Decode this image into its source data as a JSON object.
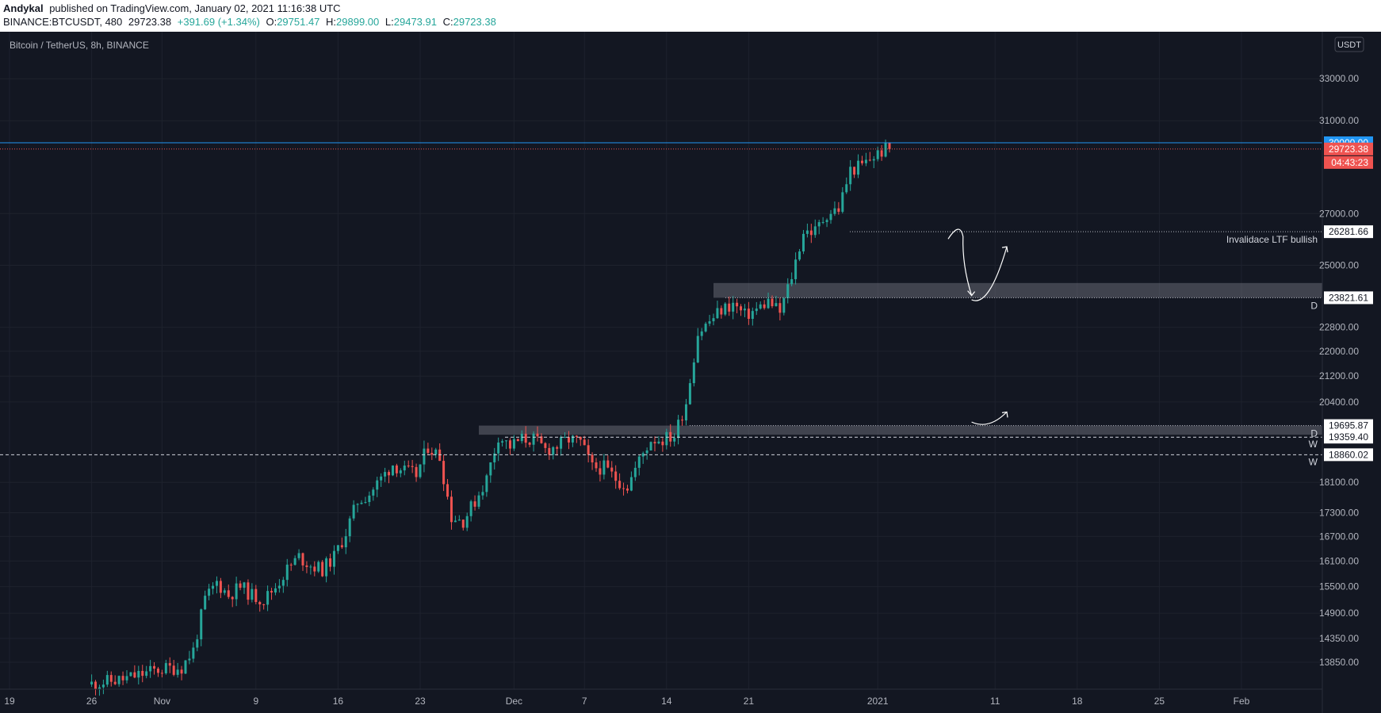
{
  "header": {
    "author": "Andykal",
    "published_text": "published on TradingView.com, January 02, 2021 11:16:38 UTC",
    "symbol": "BINANCE:BTCUSDT, 480",
    "last_price": "29723.38",
    "change": "+391.69 (+1.34%)",
    "o_label": "O:",
    "o_value": "29751.47",
    "h_label": "H:",
    "h_value": "29899.00",
    "l_label": "L:",
    "l_value": "29473.91",
    "c_label": "C:",
    "c_value": "29723.38"
  },
  "chart_data": {
    "type": "candlestick",
    "title": "Bitcoin / TetherUS, 8h, BINANCE",
    "currency": "USDT",
    "y_scale": "log",
    "ylim": [
      13650,
      35500
    ],
    "y_ticks": [
      "33000.00",
      "31000.00",
      "27000.00",
      "25000.00",
      "22800.00",
      "22000.00",
      "21200.00",
      "20400.00",
      "18100.00",
      "17300.00",
      "16700.00",
      "16100.00",
      "15500.00",
      "14900.00",
      "14350.00",
      "13850.00"
    ],
    "x_ticks": [
      {
        "label": "19",
        "date": "2020-10-19"
      },
      {
        "label": "26",
        "date": "2020-10-26"
      },
      {
        "label": "Nov",
        "date": "2020-11-01"
      },
      {
        "label": "9",
        "date": "2020-11-09"
      },
      {
        "label": "16",
        "date": "2020-11-16"
      },
      {
        "label": "23",
        "date": "2020-11-23"
      },
      {
        "label": "Dec",
        "date": "2020-12-01"
      },
      {
        "label": "7",
        "date": "2020-12-07"
      },
      {
        "label": "14",
        "date": "2020-12-14"
      },
      {
        "label": "21",
        "date": "2020-12-21"
      },
      {
        "label": "2021",
        "date": "2021-01-01"
      },
      {
        "label": "11",
        "date": "2021-01-11"
      },
      {
        "label": "18",
        "date": "2021-01-18"
      },
      {
        "label": "25",
        "date": "2021-01-25"
      },
      {
        "label": "Feb",
        "date": "2021-02-01"
      }
    ],
    "price_path": [
      [
        "2020-10-26",
        13400
      ],
      [
        "2020-10-29",
        13500
      ],
      [
        "2020-11-01",
        13700
      ],
      [
        "2020-11-03",
        13750
      ],
      [
        "2020-11-04",
        14100
      ],
      [
        "2020-11-05",
        15200
      ],
      [
        "2020-11-06",
        15600
      ],
      [
        "2020-11-07",
        15300
      ],
      [
        "2020-11-08",
        15500
      ],
      [
        "2020-11-09",
        15300
      ],
      [
        "2020-11-10",
        15200
      ],
      [
        "2020-11-11",
        15500
      ],
      [
        "2020-11-12",
        15900
      ],
      [
        "2020-11-13",
        16200
      ],
      [
        "2020-11-14",
        16000
      ],
      [
        "2020-11-15",
        15900
      ],
      [
        "2020-11-16",
        16200
      ],
      [
        "2020-11-17",
        16800
      ],
      [
        "2020-11-18",
        17600
      ],
      [
        "2020-11-19",
        17800
      ],
      [
        "2020-11-20",
        18200
      ],
      [
        "2020-11-21",
        18600
      ],
      [
        "2020-11-22",
        18400
      ],
      [
        "2020-11-23",
        18300
      ],
      [
        "2020-11-24",
        19100
      ],
      [
        "2020-11-25",
        18800
      ],
      [
        "2020-11-26",
        17200
      ],
      [
        "2020-11-27",
        17100
      ],
      [
        "2020-11-28",
        17600
      ],
      [
        "2020-11-29",
        18200
      ],
      [
        "2020-11-30",
        19400
      ],
      [
        "2020-12-01",
        19100
      ],
      [
        "2020-12-02",
        19300
      ],
      [
        "2020-12-03",
        19300
      ],
      [
        "2020-12-04",
        19000
      ],
      [
        "2020-12-05",
        19100
      ],
      [
        "2020-12-06",
        19300
      ],
      [
        "2020-12-07",
        19200
      ],
      [
        "2020-12-08",
        18500
      ],
      [
        "2020-12-09",
        18500
      ],
      [
        "2020-12-10",
        18200
      ],
      [
        "2020-12-11",
        18000
      ],
      [
        "2020-12-12",
        18700
      ],
      [
        "2020-12-13",
        19300
      ],
      [
        "2020-12-14",
        19300
      ],
      [
        "2020-12-15",
        19400
      ],
      [
        "2020-12-16",
        20400
      ],
      [
        "2020-12-17",
        22600
      ],
      [
        "2020-12-18",
        23000
      ],
      [
        "2020-12-19",
        23400
      ],
      [
        "2020-12-20",
        23600
      ],
      [
        "2020-12-21",
        23200
      ],
      [
        "2020-12-22",
        23400
      ],
      [
        "2020-12-23",
        23700
      ],
      [
        "2020-12-24",
        23300
      ],
      [
        "2020-12-25",
        24600
      ],
      [
        "2020-12-26",
        26300
      ],
      [
        "2020-12-27",
        26300
      ],
      [
        "2020-12-28",
        27000
      ],
      [
        "2020-12-29",
        27200
      ],
      [
        "2020-12-30",
        28800
      ],
      [
        "2020-12-31",
        29000
      ],
      [
        "2021-01-01",
        29400
      ],
      [
        "2021-01-02",
        29723.38
      ]
    ],
    "horizontal_levels": [
      {
        "price": 30000.0,
        "label": "30000.00",
        "style": "solid",
        "color": "#2196f3"
      },
      {
        "price": 29723.38,
        "label": "29723.38",
        "style": "dotted",
        "color": "#ef5350"
      },
      {
        "price": 26281.66,
        "label": "26281.66",
        "style": "dotted",
        "color": "#b2b5be"
      },
      {
        "price": 23821.61,
        "label": "23821.61",
        "style": "dotted",
        "color": "#b2b5be"
      },
      {
        "price": 19695.87,
        "label": "19695.87",
        "style": "dotted",
        "color": "#b2b5be"
      },
      {
        "price": 19359.4,
        "label": "19359.40",
        "style": "dashed",
        "color": "#d1d4dc"
      },
      {
        "price": 18860.02,
        "label": "18860.02",
        "style": "dashed",
        "color": "#d1d4dc"
      }
    ],
    "countdown": "04:43:23",
    "zones": [
      {
        "from_date": "2020-12-18",
        "to_date": "2021-02-10",
        "low": 23821.61,
        "high": 24350,
        "color": "#787b86"
      },
      {
        "from_date": "2020-11-28",
        "to_date": "2021-02-08",
        "low": 19430,
        "high": 19695.87,
        "color": "#787b86"
      }
    ],
    "annotations": [
      {
        "text": "Invalidace LTF bullish",
        "near": "26281.66"
      },
      {
        "text": "D",
        "near": "23821.61"
      },
      {
        "text": "D",
        "near": "19695.87"
      },
      {
        "text": "W",
        "near": "19359.40"
      },
      {
        "text": "W",
        "near": "18860.02"
      }
    ],
    "drawn_paths": [
      {
        "points": [
          [
            "2021-01-07",
            26000
          ],
          [
            "2021-01-08",
            26150
          ],
          [
            "2021-01-09",
            23900
          ]
        ],
        "arrow": true
      },
      {
        "points": [
          [
            "2021-01-09",
            23750
          ],
          [
            "2021-01-12",
            25700
          ]
        ],
        "arrow": true
      },
      {
        "points": [
          [
            "2021-01-09",
            19800
          ],
          [
            "2021-01-12",
            20100
          ]
        ],
        "arrow": true
      }
    ],
    "colors": {
      "up": "#26a69a",
      "down": "#ef5350",
      "background": "#131722",
      "grid": "#1e222d",
      "text": "#b2b5be"
    }
  }
}
